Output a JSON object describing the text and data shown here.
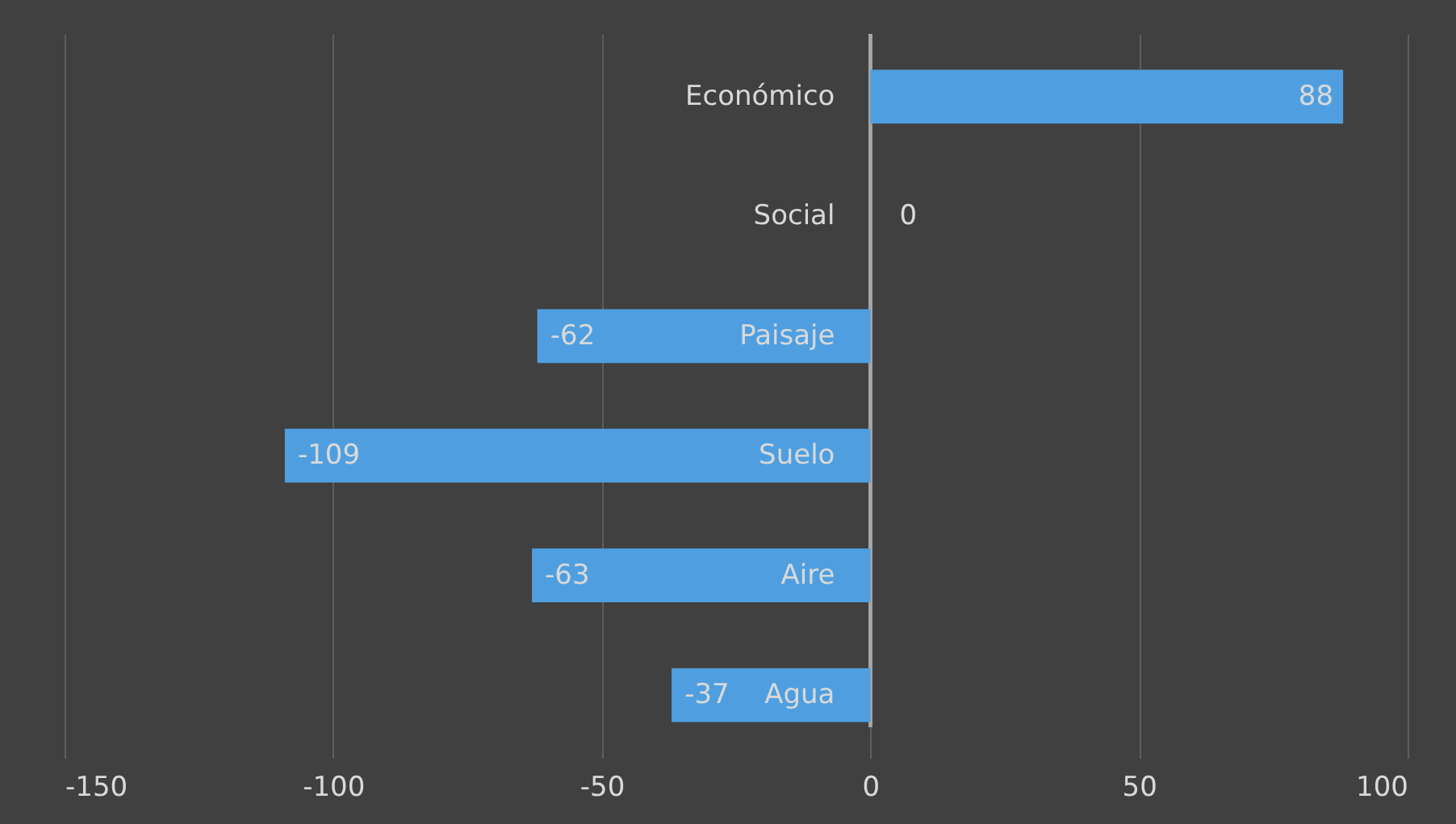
{
  "chart_data": {
    "type": "bar",
    "orientation": "horizontal",
    "categories": [
      "Económico",
      "Social",
      "Paisaje",
      "Suelo",
      "Aire",
      "Agua"
    ],
    "values": [
      88,
      0,
      -62,
      -109,
      -63,
      -37
    ],
    "color": "#4f9fe0",
    "data_labels": true,
    "xlim": [
      -150,
      100
    ],
    "xticks": [
      -150,
      -100,
      -50,
      0,
      50,
      100
    ],
    "grid": "x"
  }
}
